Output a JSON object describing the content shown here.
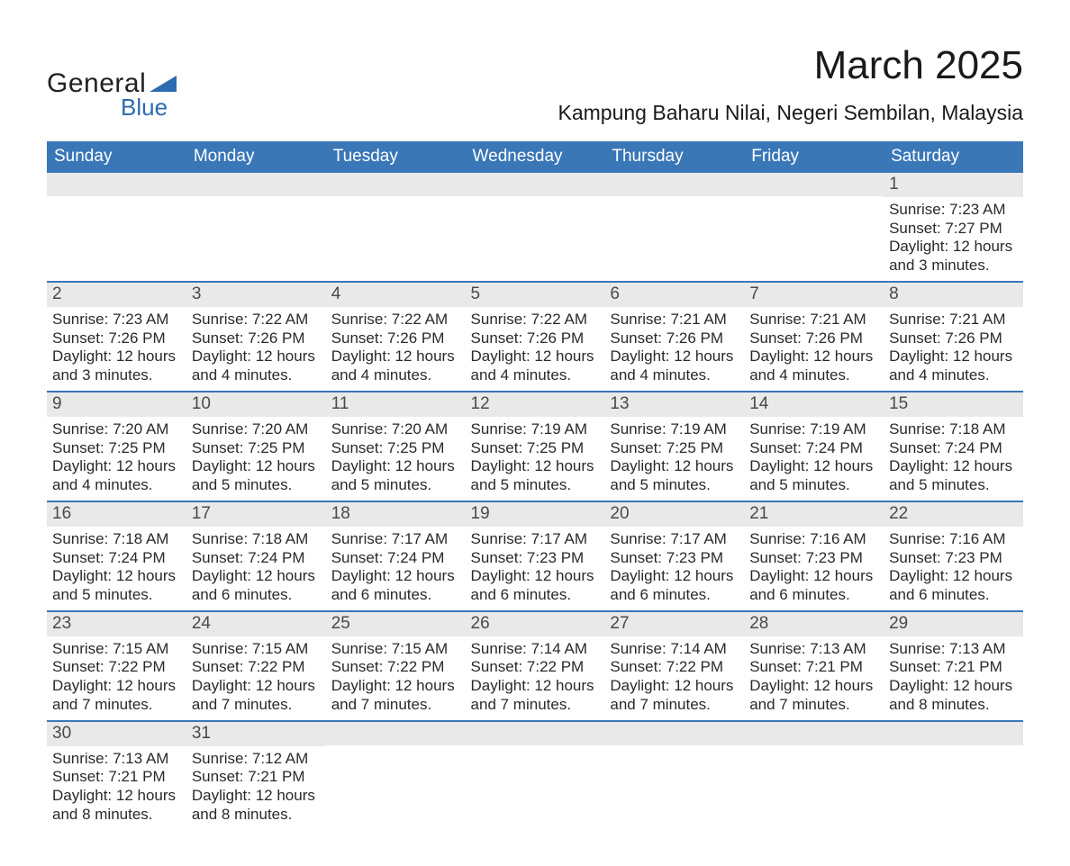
{
  "logo": {
    "text1": "General",
    "text2": "Blue",
    "accent_color": "#2e6bb0"
  },
  "title": "March 2025",
  "location": "Kampung Baharu Nilai, Negeri Sembilan, Malaysia",
  "day_headers": [
    "Sunday",
    "Monday",
    "Tuesday",
    "Wednesday",
    "Thursday",
    "Friday",
    "Saturday"
  ],
  "colors": {
    "header_bg": "#3a77b7",
    "header_text": "#ffffff",
    "daynum_bg": "#e9e9e9",
    "daynum_text": "#4a4a4a",
    "row_divider": "#3a77b7",
    "body_text": "#2a2a2a"
  },
  "fonts": {
    "title_size_pt": 44,
    "location_size_pt": 23,
    "header_size_pt": 19,
    "daynum_size_pt": 19,
    "body_size_pt": 17
  },
  "weeks": [
    [
      {
        "n": "",
        "sunrise": "",
        "sunset": "",
        "daylight": ""
      },
      {
        "n": "",
        "sunrise": "",
        "sunset": "",
        "daylight": ""
      },
      {
        "n": "",
        "sunrise": "",
        "sunset": "",
        "daylight": ""
      },
      {
        "n": "",
        "sunrise": "",
        "sunset": "",
        "daylight": ""
      },
      {
        "n": "",
        "sunrise": "",
        "sunset": "",
        "daylight": ""
      },
      {
        "n": "",
        "sunrise": "",
        "sunset": "",
        "daylight": ""
      },
      {
        "n": "1",
        "sunrise": "Sunrise: 7:23 AM",
        "sunset": "Sunset: 7:27 PM",
        "daylight": "Daylight: 12 hours and 3 minutes."
      }
    ],
    [
      {
        "n": "2",
        "sunrise": "Sunrise: 7:23 AM",
        "sunset": "Sunset: 7:26 PM",
        "daylight": "Daylight: 12 hours and 3 minutes."
      },
      {
        "n": "3",
        "sunrise": "Sunrise: 7:22 AM",
        "sunset": "Sunset: 7:26 PM",
        "daylight": "Daylight: 12 hours and 4 minutes."
      },
      {
        "n": "4",
        "sunrise": "Sunrise: 7:22 AM",
        "sunset": "Sunset: 7:26 PM",
        "daylight": "Daylight: 12 hours and 4 minutes."
      },
      {
        "n": "5",
        "sunrise": "Sunrise: 7:22 AM",
        "sunset": "Sunset: 7:26 PM",
        "daylight": "Daylight: 12 hours and 4 minutes."
      },
      {
        "n": "6",
        "sunrise": "Sunrise: 7:21 AM",
        "sunset": "Sunset: 7:26 PM",
        "daylight": "Daylight: 12 hours and 4 minutes."
      },
      {
        "n": "7",
        "sunrise": "Sunrise: 7:21 AM",
        "sunset": "Sunset: 7:26 PM",
        "daylight": "Daylight: 12 hours and 4 minutes."
      },
      {
        "n": "8",
        "sunrise": "Sunrise: 7:21 AM",
        "sunset": "Sunset: 7:26 PM",
        "daylight": "Daylight: 12 hours and 4 minutes."
      }
    ],
    [
      {
        "n": "9",
        "sunrise": "Sunrise: 7:20 AM",
        "sunset": "Sunset: 7:25 PM",
        "daylight": "Daylight: 12 hours and 4 minutes."
      },
      {
        "n": "10",
        "sunrise": "Sunrise: 7:20 AM",
        "sunset": "Sunset: 7:25 PM",
        "daylight": "Daylight: 12 hours and 5 minutes."
      },
      {
        "n": "11",
        "sunrise": "Sunrise: 7:20 AM",
        "sunset": "Sunset: 7:25 PM",
        "daylight": "Daylight: 12 hours and 5 minutes."
      },
      {
        "n": "12",
        "sunrise": "Sunrise: 7:19 AM",
        "sunset": "Sunset: 7:25 PM",
        "daylight": "Daylight: 12 hours and 5 minutes."
      },
      {
        "n": "13",
        "sunrise": "Sunrise: 7:19 AM",
        "sunset": "Sunset: 7:25 PM",
        "daylight": "Daylight: 12 hours and 5 minutes."
      },
      {
        "n": "14",
        "sunrise": "Sunrise: 7:19 AM",
        "sunset": "Sunset: 7:24 PM",
        "daylight": "Daylight: 12 hours and 5 minutes."
      },
      {
        "n": "15",
        "sunrise": "Sunrise: 7:18 AM",
        "sunset": "Sunset: 7:24 PM",
        "daylight": "Daylight: 12 hours and 5 minutes."
      }
    ],
    [
      {
        "n": "16",
        "sunrise": "Sunrise: 7:18 AM",
        "sunset": "Sunset: 7:24 PM",
        "daylight": "Daylight: 12 hours and 5 minutes."
      },
      {
        "n": "17",
        "sunrise": "Sunrise: 7:18 AM",
        "sunset": "Sunset: 7:24 PM",
        "daylight": "Daylight: 12 hours and 6 minutes."
      },
      {
        "n": "18",
        "sunrise": "Sunrise: 7:17 AM",
        "sunset": "Sunset: 7:24 PM",
        "daylight": "Daylight: 12 hours and 6 minutes."
      },
      {
        "n": "19",
        "sunrise": "Sunrise: 7:17 AM",
        "sunset": "Sunset: 7:23 PM",
        "daylight": "Daylight: 12 hours and 6 minutes."
      },
      {
        "n": "20",
        "sunrise": "Sunrise: 7:17 AM",
        "sunset": "Sunset: 7:23 PM",
        "daylight": "Daylight: 12 hours and 6 minutes."
      },
      {
        "n": "21",
        "sunrise": "Sunrise: 7:16 AM",
        "sunset": "Sunset: 7:23 PM",
        "daylight": "Daylight: 12 hours and 6 minutes."
      },
      {
        "n": "22",
        "sunrise": "Sunrise: 7:16 AM",
        "sunset": "Sunset: 7:23 PM",
        "daylight": "Daylight: 12 hours and 6 minutes."
      }
    ],
    [
      {
        "n": "23",
        "sunrise": "Sunrise: 7:15 AM",
        "sunset": "Sunset: 7:22 PM",
        "daylight": "Daylight: 12 hours and 7 minutes."
      },
      {
        "n": "24",
        "sunrise": "Sunrise: 7:15 AM",
        "sunset": "Sunset: 7:22 PM",
        "daylight": "Daylight: 12 hours and 7 minutes."
      },
      {
        "n": "25",
        "sunrise": "Sunrise: 7:15 AM",
        "sunset": "Sunset: 7:22 PM",
        "daylight": "Daylight: 12 hours and 7 minutes."
      },
      {
        "n": "26",
        "sunrise": "Sunrise: 7:14 AM",
        "sunset": "Sunset: 7:22 PM",
        "daylight": "Daylight: 12 hours and 7 minutes."
      },
      {
        "n": "27",
        "sunrise": "Sunrise: 7:14 AM",
        "sunset": "Sunset: 7:22 PM",
        "daylight": "Daylight: 12 hours and 7 minutes."
      },
      {
        "n": "28",
        "sunrise": "Sunrise: 7:13 AM",
        "sunset": "Sunset: 7:21 PM",
        "daylight": "Daylight: 12 hours and 7 minutes."
      },
      {
        "n": "29",
        "sunrise": "Sunrise: 7:13 AM",
        "sunset": "Sunset: 7:21 PM",
        "daylight": "Daylight: 12 hours and 8 minutes."
      }
    ],
    [
      {
        "n": "30",
        "sunrise": "Sunrise: 7:13 AM",
        "sunset": "Sunset: 7:21 PM",
        "daylight": "Daylight: 12 hours and 8 minutes."
      },
      {
        "n": "31",
        "sunrise": "Sunrise: 7:12 AM",
        "sunset": "Sunset: 7:21 PM",
        "daylight": "Daylight: 12 hours and 8 minutes."
      },
      {
        "n": "",
        "sunrise": "",
        "sunset": "",
        "daylight": ""
      },
      {
        "n": "",
        "sunrise": "",
        "sunset": "",
        "daylight": ""
      },
      {
        "n": "",
        "sunrise": "",
        "sunset": "",
        "daylight": ""
      },
      {
        "n": "",
        "sunrise": "",
        "sunset": "",
        "daylight": ""
      },
      {
        "n": "",
        "sunrise": "",
        "sunset": "",
        "daylight": ""
      }
    ]
  ]
}
